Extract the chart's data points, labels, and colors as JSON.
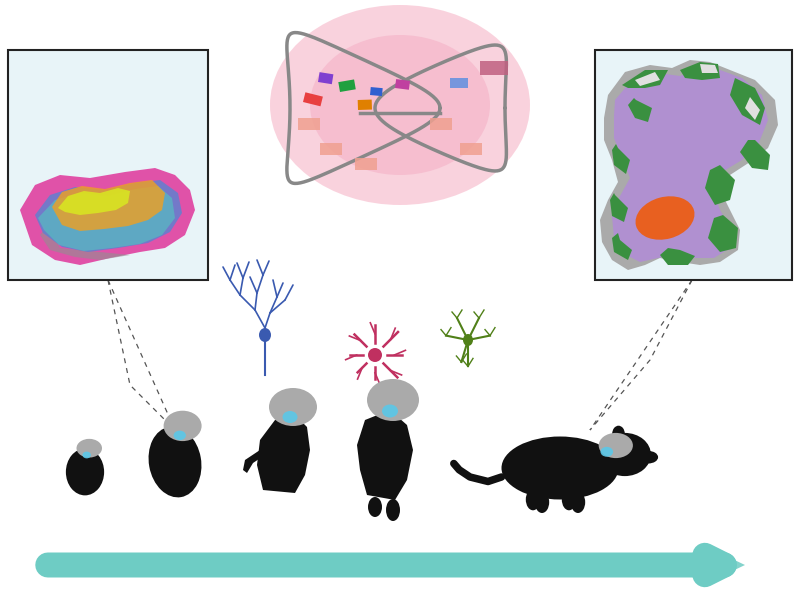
{
  "fig_width": 8.0,
  "fig_height": 5.89,
  "dpi": 100,
  "bg_color": "#ffffff",
  "box_bg": "#e8f4f8",
  "box_border": "#222222",
  "arrow_color": "#6eccc4",
  "arrow_head_color": "#6eccc4",
  "dashed_line_color": "#555555",
  "pink_glow_color": "#f0a0c0",
  "dna_loop_color": "#888888",
  "embryo_body_color": "#111111",
  "embryo_brain_color": "#aaaaaa",
  "cerebellum_highlight": "#5bc8e8"
}
